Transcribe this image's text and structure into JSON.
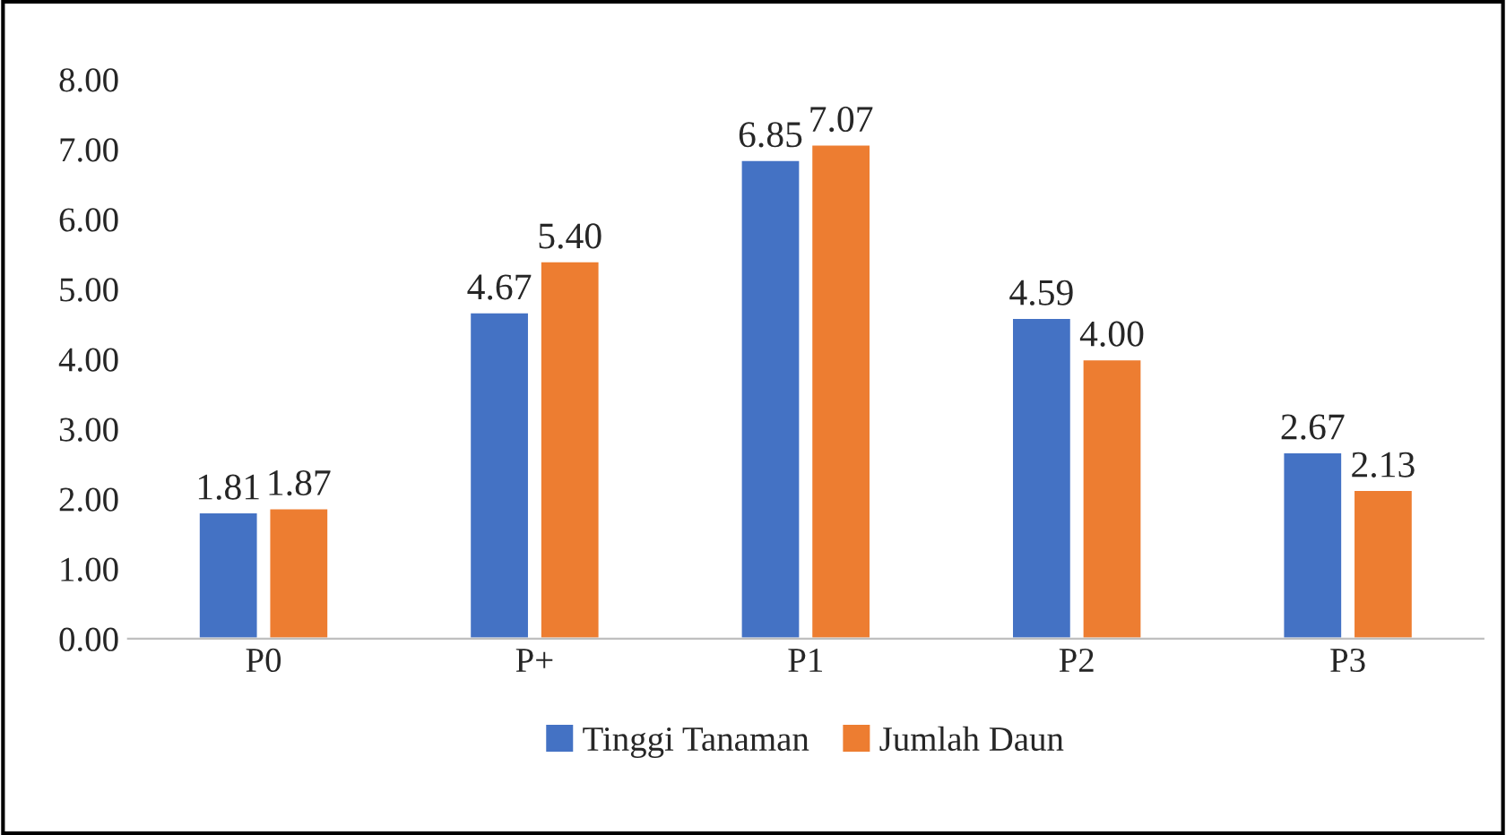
{
  "chart_data": {
    "type": "bar",
    "categories": [
      "P0",
      "P+",
      "P1",
      "P2",
      "P3"
    ],
    "series": [
      {
        "name": "Tinggi Tanaman",
        "color": "#4472c4",
        "values": [
          1.81,
          4.67,
          6.85,
          4.59,
          2.67
        ],
        "value_labels": [
          "1.81",
          "4.67",
          "6.85",
          "4.59",
          "2.67"
        ]
      },
      {
        "name": "Jumlah Daun",
        "color": "#ed7d31",
        "values": [
          1.87,
          5.4,
          7.07,
          4.0,
          2.13
        ],
        "value_labels": [
          "1.87",
          "5.40",
          "7.07",
          "4.00",
          "2.13"
        ]
      }
    ],
    "ylim": [
      0,
      8
    ],
    "yticks": [
      {
        "value": 0,
        "label": "0.00"
      },
      {
        "value": 1,
        "label": "1.00"
      },
      {
        "value": 2,
        "label": "2.00"
      },
      {
        "value": 3,
        "label": "3.00"
      },
      {
        "value": 4,
        "label": "4.00"
      },
      {
        "value": 5,
        "label": "5.00"
      },
      {
        "value": 6,
        "label": "6.00"
      },
      {
        "value": 7,
        "label": "7.00"
      },
      {
        "value": 8,
        "label": "8.00"
      }
    ],
    "legend": "bottom",
    "grid": false
  }
}
